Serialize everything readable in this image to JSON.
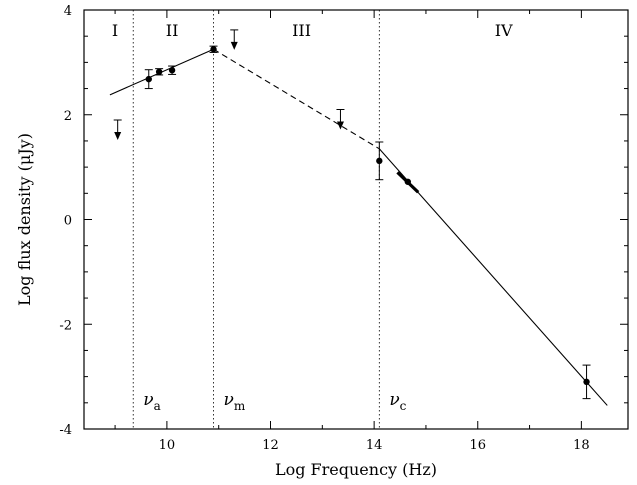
{
  "chart_data": {
    "type": "scatter",
    "xlabel": "Log Frequency (Hz)",
    "ylabel": "Log flux density (μJy)",
    "xlim": [
      8.4,
      18.9
    ],
    "ylim": [
      -4,
      4
    ],
    "x_ticks": [
      10,
      12,
      14,
      16,
      18
    ],
    "y_ticks": [
      -4,
      -2,
      0,
      2,
      4
    ],
    "x_tick_labels": [
      "10",
      "12",
      "14",
      "16",
      "18"
    ],
    "y_tick_labels": [
      "-4",
      "-2",
      "0",
      "2",
      "4"
    ],
    "grid": false,
    "regions": [
      {
        "label": "I",
        "x": 9.0
      },
      {
        "label": "II",
        "x": 10.1
      },
      {
        "label": "III",
        "x": 12.6
      },
      {
        "label": "IV",
        "x": 16.5
      }
    ],
    "vertical_lines": [
      {
        "x": 9.35,
        "symbol": "ν",
        "subscript": "a"
      },
      {
        "x": 10.9,
        "symbol": "ν",
        "subscript": "m"
      },
      {
        "x": 14.1,
        "symbol": "ν",
        "subscript": "c"
      }
    ],
    "model_segments": [
      {
        "style": "solid",
        "points": [
          [
            8.9,
            2.38
          ],
          [
            10.9,
            3.25
          ]
        ]
      },
      {
        "style": "dashed",
        "points": [
          [
            10.9,
            3.25
          ],
          [
            14.1,
            1.35
          ]
        ]
      },
      {
        "style": "solid",
        "points": [
          [
            14.1,
            1.35
          ],
          [
            18.5,
            -3.55
          ]
        ]
      }
    ],
    "series": [
      {
        "points": [
          {
            "x": 9.65,
            "y": 2.68,
            "err": 0.18
          },
          {
            "x": 9.85,
            "y": 2.82,
            "err": 0.06
          },
          {
            "x": 10.1,
            "y": 2.85,
            "err": 0.08
          },
          {
            "x": 10.9,
            "y": 3.25,
            "err": 0.06
          },
          {
            "x": 14.1,
            "y": 1.12,
            "err": 0.36
          },
          {
            "x": 14.65,
            "y": 0.72,
            "err": 0.0
          },
          {
            "x": 18.1,
            "y": -3.1,
            "err": 0.32
          }
        ]
      }
    ],
    "upper_limits": [
      {
        "x": 9.05,
        "y": 1.9
      },
      {
        "x": 11.3,
        "y": 3.62
      },
      {
        "x": 13.35,
        "y": 2.1
      }
    ],
    "optical_slope_segment": [
      [
        14.45,
        0.9
      ],
      [
        14.85,
        0.52
      ]
    ]
  }
}
